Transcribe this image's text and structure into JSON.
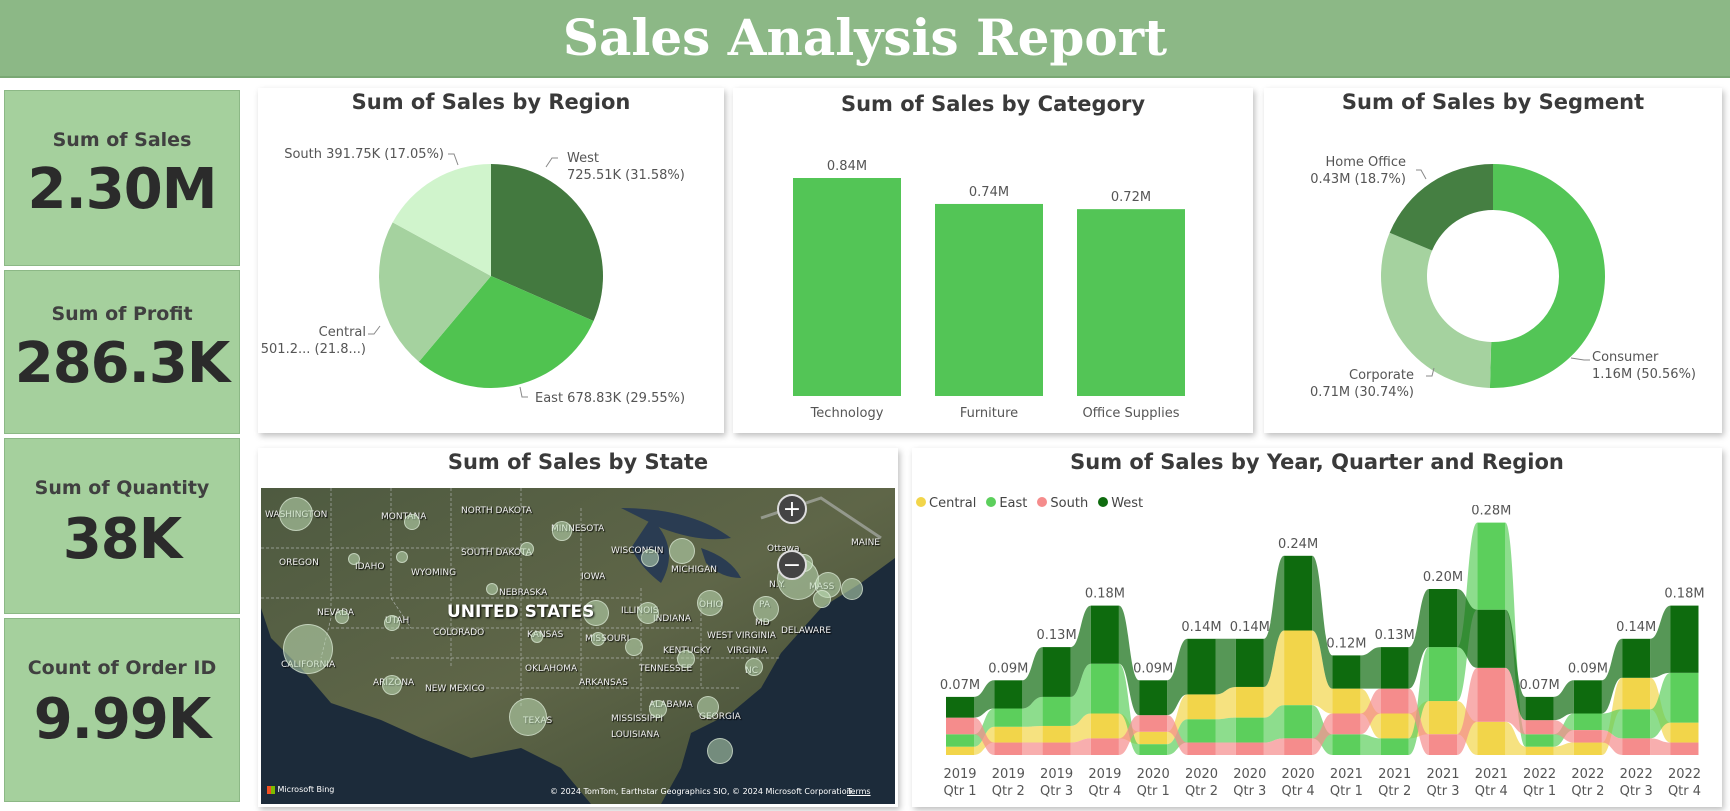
{
  "header": {
    "title": "Sales Analysis Report"
  },
  "kpis": [
    {
      "label": "Sum of Sales",
      "value": "2.30M"
    },
    {
      "label": "Sum of Profit",
      "value": "286.3K"
    },
    {
      "label": "Sum of Quantity",
      "value": "38K"
    },
    {
      "label": "Count of Order ID",
      "value": "9.99K"
    }
  ],
  "region_pie": {
    "title": "Sum of Sales by Region",
    "labels": {
      "west_name": "West",
      "west_value": "725.51K (31.58%)",
      "east": "East 678.83K (29.55%)",
      "central_name": "Central",
      "central_value": "501.2... (21.8...)",
      "south": "South 391.75K (17.05%)"
    }
  },
  "category_bar": {
    "title": "Sum of Sales by Category",
    "data_labels": [
      "0.84M",
      "0.74M",
      "0.72M"
    ]
  },
  "segment_donut": {
    "title": "Sum of Sales by Segment",
    "labels": {
      "consumer_name": "Consumer",
      "consumer_value": "1.16M (50.56%)",
      "corporate_name": "Corporate",
      "corporate_value": "0.71M (30.74%)",
      "home_name": "Home Office",
      "home_value": "0.43M (18.7%)"
    }
  },
  "map": {
    "title": "Sum of Sales by State",
    "country_label": "UNITED STATES",
    "state_labels": [
      "WASHINGTON",
      "MONTANA",
      "NORTH DAKOTA",
      "MINNESOTA",
      "OREGON",
      "IDAHO",
      "WYOMING",
      "SOUTH DAKOTA",
      "WISCONSIN",
      "MICHIGAN",
      "IOWA",
      "NEBRASKA",
      "NEVADA",
      "UTAH",
      "COLORADO",
      "KANSAS",
      "MISSOURI",
      "ILLINOIS",
      "INDIANA",
      "OHIO",
      "PA",
      "N.Y.",
      "MASS",
      "CALIFORNIA",
      "ARIZONA",
      "NEW MEXICO",
      "OKLAHOMA",
      "ARKANSAS",
      "TENNESSEE",
      "KENTUCKY",
      "VIRGINIA",
      "NC",
      "TEXAS",
      "MISSISSIPPI",
      "ALABAMA",
      "GEORGIA",
      "LOUISIANA",
      "Ottawa",
      "MD",
      "DELAWARE",
      "WEST VIRGINIA",
      "MAINE"
    ],
    "bing_label": "Microsoft Bing",
    "copyright": "© 2024 TomTom, Earthstar Geographics SIO, © 2024 Microsoft Corporation",
    "terms": "Terms",
    "zoom_in": "+",
    "zoom_out": "−"
  },
  "ribbon": {
    "title": "Sum of Sales by Year, Quarter and Region",
    "legend": [
      "Central",
      "East",
      "South",
      "West"
    ]
  },
  "colors": {
    "header": "#8cb886",
    "kpi_bg": "#a5d09d",
    "bar": "#53c556",
    "west": "#43793f",
    "east": "#50c350",
    "central": "#a5d29f",
    "south": "#d0f4cc",
    "ribbon_central": "#f2d54a",
    "ribbon_east": "#5ccf5c",
    "ribbon_south": "#f58c8c",
    "ribbon_west": "#0e6b0e"
  },
  "chart_data": [
    {
      "type": "pie",
      "title": "Sum of Sales by Region",
      "categories": [
        "West",
        "East",
        "Central",
        "South"
      ],
      "values": [
        725.51,
        678.83,
        501.2,
        391.75
      ],
      "unit": "K",
      "percent": [
        31.58,
        29.55,
        21.8,
        17.05
      ]
    },
    {
      "type": "bar",
      "title": "Sum of Sales by Category",
      "categories": [
        "Technology",
        "Furniture",
        "Office Supplies"
      ],
      "values": [
        0.84,
        0.74,
        0.72
      ],
      "unit": "M"
    },
    {
      "type": "pie",
      "subtype": "donut",
      "title": "Sum of Sales by Segment",
      "categories": [
        "Consumer",
        "Corporate",
        "Home Office"
      ],
      "values": [
        1.16,
        0.71,
        0.43
      ],
      "unit": "M",
      "percent": [
        50.56,
        30.74,
        18.7
      ]
    },
    {
      "type": "area",
      "subtype": "ribbon",
      "title": "Sum of Sales by Year, Quarter and Region",
      "categories": [
        "2019 Qtr 1",
        "2019 Qtr 2",
        "2019 Qtr 3",
        "2019 Qtr 4",
        "2020 Qtr 1",
        "2020 Qtr 2",
        "2020 Qtr 3",
        "2020 Qtr 4",
        "2021 Qtr 1",
        "2021 Qtr 2",
        "2021 Qtr 3",
        "2021 Qtr 4",
        "2022 Qtr 1",
        "2022 Qtr 2",
        "2022 Qtr 3",
        "2022 Qtr 4"
      ],
      "year_labels": [
        "2019",
        "2019",
        "2019",
        "2019",
        "2020",
        "2020",
        "2020",
        "2020",
        "2021",
        "2021",
        "2021",
        "2021",
        "2022",
        "2022",
        "2022",
        "2022"
      ],
      "quarter_labels": [
        "Qtr 1",
        "Qtr 2",
        "Qtr 3",
        "Qtr 4",
        "Qtr 1",
        "Qtr 2",
        "Qtr 3",
        "Qtr 4",
        "Qtr 1",
        "Qtr 2",
        "Qtr 3",
        "Qtr 4",
        "Qtr 1",
        "Qtr 2",
        "Qtr 3",
        "Qtr 4"
      ],
      "totals": [
        0.07,
        0.09,
        0.13,
        0.18,
        0.09,
        0.14,
        0.14,
        0.24,
        0.12,
        0.13,
        0.2,
        0.28,
        0.07,
        0.09,
        0.14,
        0.18
      ],
      "total_labels": [
        "0.07M",
        "0.09M",
        "0.13M",
        "0.18M",
        "0.09M",
        "0.14M",
        "0.14M",
        "0.24M",
        "0.12M",
        "0.13M",
        "0.20M",
        "0.28M",
        "0.07M",
        "0.09M",
        "0.14M",
        "0.18M"
      ],
      "series": [
        {
          "name": "Central",
          "values": [
            0.01,
            0.019,
            0.02,
            0.03,
            0.015,
            0.03,
            0.037,
            0.09,
            0.03,
            0.03,
            0.04,
            0.04,
            0.01,
            0.015,
            0.038,
            0.024
          ]
        },
        {
          "name": "East",
          "values": [
            0.015,
            0.022,
            0.035,
            0.06,
            0.013,
            0.028,
            0.03,
            0.04,
            0.025,
            0.02,
            0.065,
            0.105,
            0.015,
            0.02,
            0.035,
            0.06
          ]
        },
        {
          "name": "South",
          "values": [
            0.02,
            0.015,
            0.015,
            0.02,
            0.02,
            0.015,
            0.015,
            0.02,
            0.025,
            0.03,
            0.025,
            0.065,
            0.017,
            0.015,
            0.02,
            0.015
          ]
        },
        {
          "name": "West",
          "values": [
            0.025,
            0.034,
            0.06,
            0.07,
            0.042,
            0.067,
            0.058,
            0.09,
            0.04,
            0.05,
            0.07,
            0.07,
            0.028,
            0.04,
            0.047,
            0.081
          ]
        }
      ]
    }
  ]
}
